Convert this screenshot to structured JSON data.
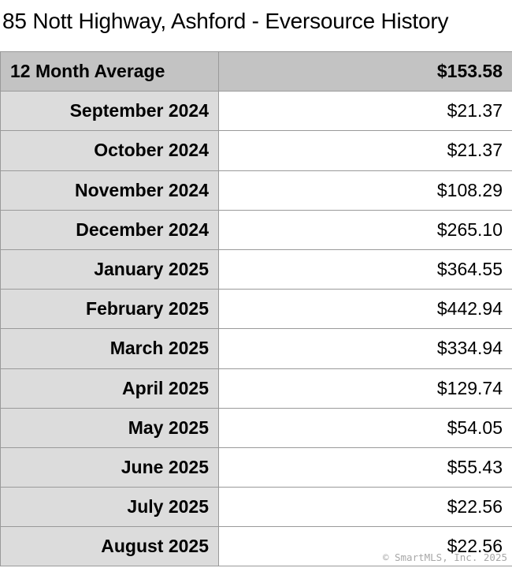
{
  "title": "85 Nott Highway, Ashford - Eversource History",
  "summary": {
    "label": "12 Month Average",
    "value": "$153.58"
  },
  "rows": [
    {
      "month": "September 2024",
      "amount": "$21.37"
    },
    {
      "month": "October 2024",
      "amount": "$21.37"
    },
    {
      "month": "November 2024",
      "amount": "$108.29"
    },
    {
      "month": "December 2024",
      "amount": "$265.10"
    },
    {
      "month": "January 2025",
      "amount": "$364.55"
    },
    {
      "month": "February 2025",
      "amount": "$442.94"
    },
    {
      "month": "March 2025",
      "amount": "$334.94"
    },
    {
      "month": "April 2025",
      "amount": "$129.74"
    },
    {
      "month": "May 2025",
      "amount": "$54.05"
    },
    {
      "month": "June 2025",
      "amount": "$55.43"
    },
    {
      "month": "July 2025",
      "amount": "$22.56"
    },
    {
      "month": "August 2025",
      "amount": "$22.56"
    }
  ],
  "watermark": "© SmartMLS, Inc.  2025"
}
